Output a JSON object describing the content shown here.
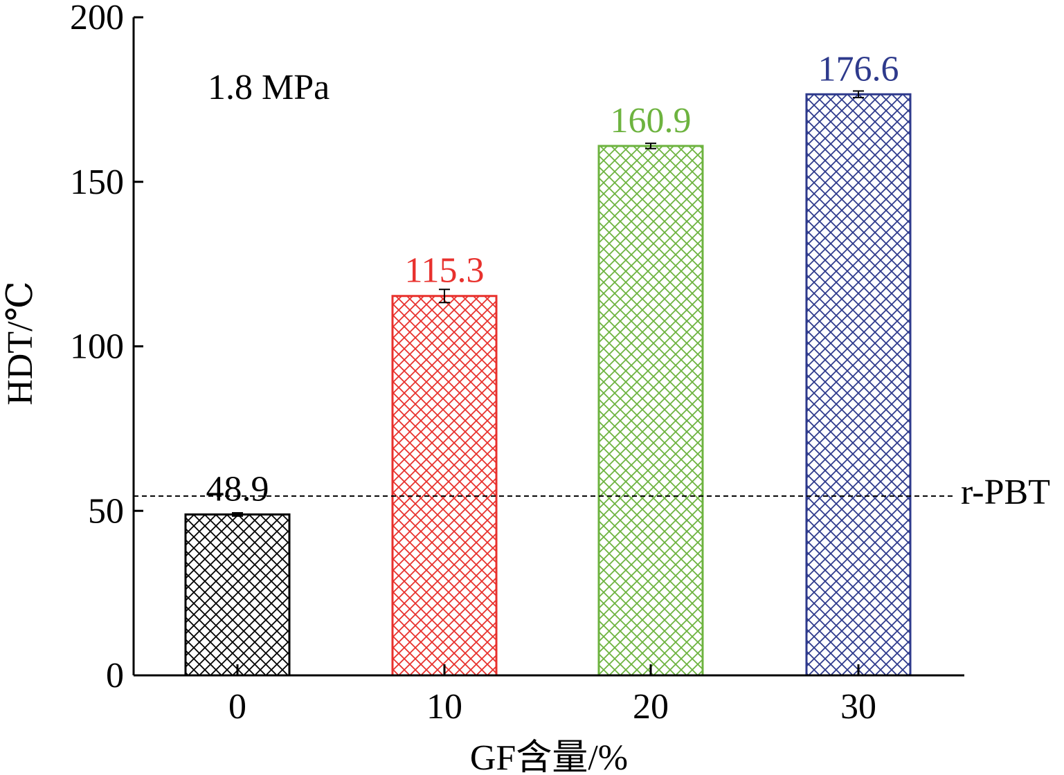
{
  "chart_data": {
    "type": "bar",
    "categories": [
      "0",
      "10",
      "20",
      "30"
    ],
    "values": [
      48.9,
      115.3,
      160.9,
      176.6
    ],
    "error": [
      0.5,
      2.0,
      0.8,
      1.0
    ],
    "data_labels": [
      "48.9",
      "115.3",
      "160.9",
      "176.6"
    ],
    "bar_colors": [
      "#000000",
      "#e8312d",
      "#6db33f",
      "#2e3a8c"
    ],
    "pattern": "crosshatch",
    "xlabel": "GF含量/%",
    "ylabel": "HDT/℃",
    "ylim": [
      0,
      200
    ],
    "yticks": [
      0,
      50,
      100,
      150,
      200
    ],
    "grid": false,
    "annotation": "1.8 MPa",
    "reference_line": {
      "label": "r-PBT",
      "value": 54.5,
      "style": "dashed"
    }
  }
}
